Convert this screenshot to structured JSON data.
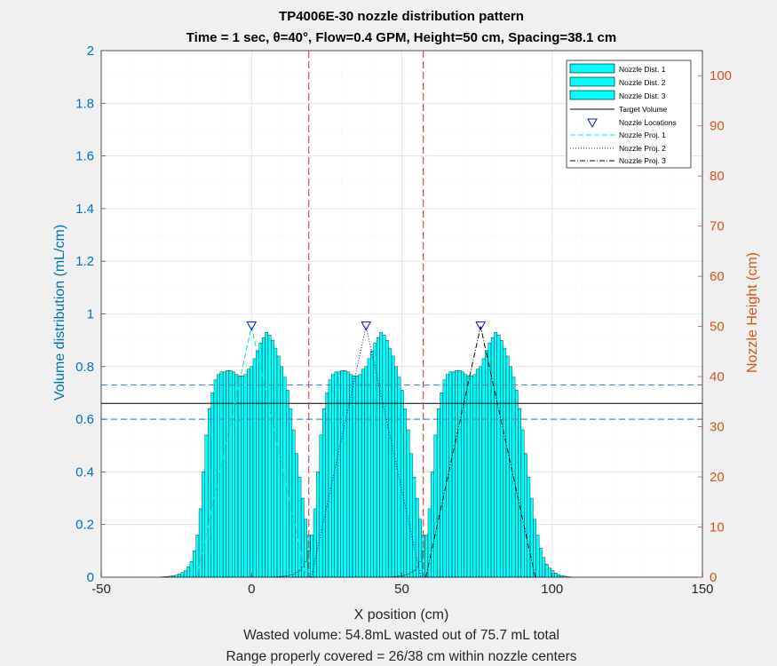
{
  "title_line1": "TP4006E-30 nozzle distribution pattern",
  "title_line2": "Time = 1 sec, θ=40°, Flow=0.4 GPM, Height=50 cm, Spacing=38.1 cm",
  "xlabel": "X position (cm)",
  "ylabel_left": "Volume distribution (mL/cm)",
  "ylabel_right": "Nozzle Height (cm)",
  "caption_line1": "Wasted volume: 54.8mL wasted out of 75.7 mL total",
  "caption_line2": "Range properly covered = 26/38 cm within nozzle centers",
  "colors": {
    "bars": "#00ffff",
    "bar_edge": "#000000",
    "left_axis": "#0072bd",
    "right_axis": "#d95319",
    "bound_lines": "#4a90c8",
    "spacing_lines": "#d03030",
    "proj1": "#00e0e0",
    "proj2": "#1010b0",
    "proj3": "#000000"
  },
  "chart_data": {
    "type": "bar",
    "xlim": [
      -50,
      150
    ],
    "ylim_left": [
      0,
      2
    ],
    "ylim_right": [
      0,
      105
    ],
    "grid": true,
    "x_ticks": [
      "-50",
      "0",
      "50",
      "100",
      "150"
    ],
    "y_ticks_left": [
      "0",
      "0.2",
      "0.4",
      "0.6",
      "0.8",
      "1",
      "1.2",
      "1.4",
      "1.6",
      "1.8",
      "2"
    ],
    "y_ticks_right": [
      "0",
      "10",
      "20",
      "30",
      "40",
      "50",
      "60",
      "70",
      "80",
      "90",
      "100"
    ],
    "legend_position": "top-right",
    "legend": [
      "Nozzle Dist. 1",
      "Nozzle Dist. 2",
      "Nozzle Dist. 3",
      "Target Volume",
      "Nozzle Locations",
      "Nozzle Proj. 1",
      "Nozzle Proj. 2",
      "Nozzle Proj. 3"
    ],
    "target_volume": 0.66,
    "bounds": [
      0.6,
      0.73
    ],
    "spacing_lines_x": [
      19.05,
      57.15
    ],
    "nozzle_x": [
      0,
      38.1,
      76.2
    ],
    "nozzle_height": 50,
    "projection_half_width_cm": 18.2,
    "distribution_x": [
      -30,
      -29,
      -28,
      -27,
      -26,
      -25,
      -24,
      -23,
      -22,
      -21,
      -20,
      -19,
      -18,
      -17,
      -16,
      -15,
      -14,
      -13,
      -12,
      -11,
      -10,
      -9,
      -8,
      -7,
      -6,
      -5,
      -4,
      -3,
      -2,
      -1,
      0,
      1,
      2,
      3,
      4,
      5,
      6,
      7,
      8,
      9,
      10,
      11,
      12,
      13,
      14,
      15,
      16,
      17,
      18,
      19,
      20,
      21,
      22,
      23,
      24,
      25,
      26,
      27,
      28,
      29,
      30
    ],
    "distribution_y": [
      0.001,
      0.002,
      0.003,
      0.004,
      0.006,
      0.008,
      0.012,
      0.018,
      0.025,
      0.04,
      0.06,
      0.1,
      0.16,
      0.26,
      0.4,
      0.54,
      0.64,
      0.7,
      0.75,
      0.77,
      0.78,
      0.78,
      0.785,
      0.785,
      0.78,
      0.77,
      0.765,
      0.765,
      0.77,
      0.79,
      0.8,
      0.83,
      0.86,
      0.89,
      0.91,
      0.93,
      0.92,
      0.9,
      0.87,
      0.84,
      0.8,
      0.76,
      0.71,
      0.64,
      0.56,
      0.47,
      0.38,
      0.3,
      0.22,
      0.16,
      0.11,
      0.075,
      0.05,
      0.035,
      0.025,
      0.016,
      0.01,
      0.006,
      0.004,
      0.002,
      0.001
    ]
  }
}
